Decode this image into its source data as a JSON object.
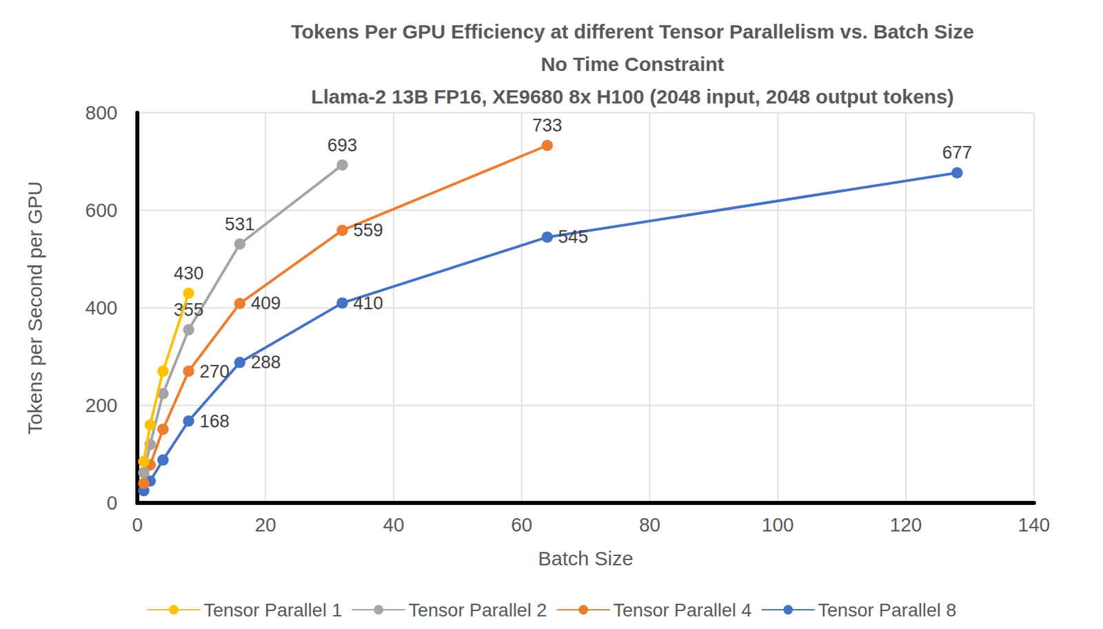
{
  "chart_data": {
    "type": "line",
    "title": [
      "Tokens Per GPU Efficiency at different Tensor Parallelism vs. Batch Size",
      "No Time Constraint",
      "Llama-2 13B FP16, XE9680 8x H100 (2048 input, 2048 output tokens)"
    ],
    "x_label": "Batch Size",
    "y_label": "Tokens per Second per GPU",
    "xlim": [
      0,
      140
    ],
    "xticks": [
      0,
      20,
      40,
      60,
      80,
      100,
      120,
      140
    ],
    "ylim": [
      0,
      800
    ],
    "yticks": [
      0,
      200,
      400,
      600,
      800
    ],
    "grid": true,
    "legend": "bottom",
    "marker": "circle",
    "line_style": "solid",
    "series": [
      {
        "name": "Tensor Parallel 1",
        "color": "#FFC000",
        "x": [
          1,
          2,
          4,
          8
        ],
        "values": [
          85,
          160,
          270,
          430
        ],
        "value_labels": [
          null,
          null,
          null,
          "430"
        ]
      },
      {
        "name": "Tensor Parallel 2",
        "color": "#A5A5A5",
        "x": [
          1,
          2,
          4,
          8,
          16,
          32
        ],
        "values": [
          62,
          120,
          224,
          355,
          531,
          693
        ],
        "value_labels": [
          null,
          null,
          null,
          "355",
          "531",
          "693"
        ]
      },
      {
        "name": "Tensor Parallel 4",
        "color": "#ED7D31",
        "x": [
          1,
          2,
          4,
          8,
          16,
          32,
          64
        ],
        "values": [
          40,
          78,
          151,
          270,
          409,
          559,
          733
        ],
        "value_labels": [
          null,
          null,
          null,
          "270",
          "409",
          "559",
          "733"
        ]
      },
      {
        "name": "Tensor Parallel 8",
        "color": "#4472C4",
        "x": [
          1,
          2,
          4,
          8,
          16,
          32,
          64,
          128
        ],
        "values": [
          25,
          45,
          88,
          168,
          288,
          410,
          545,
          677
        ],
        "value_labels": [
          null,
          null,
          null,
          "168",
          "288",
          "410",
          "545",
          "677"
        ]
      }
    ]
  }
}
